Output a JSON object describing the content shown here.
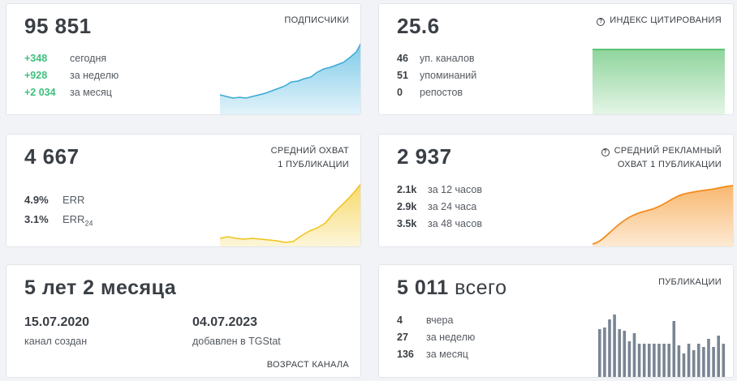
{
  "subscribers": {
    "value": "95 851",
    "label": "ПОДПИСЧИКИ",
    "rows": [
      {
        "value": "+348",
        "text": "сегодня"
      },
      {
        "value": "+928",
        "text": "за неделю"
      },
      {
        "value": "+2 034",
        "text": "за месяц"
      }
    ],
    "color": "#3aa9d6"
  },
  "citation": {
    "value": "25.6",
    "label": "ИНДЕКС ЦИТИРОВАНИЯ",
    "help_icon": "question-circle-icon",
    "rows": [
      {
        "value": "46",
        "text": "уп. каналов"
      },
      {
        "value": "51",
        "text": "упоминаний"
      },
      {
        "value": "0",
        "text": "репостов"
      }
    ],
    "color": "#3cb85c"
  },
  "reach": {
    "value": "4 667",
    "label_line1": "СРЕДНИЙ ОХВАТ",
    "label_line2": "1 ПУБЛИКАЦИИ",
    "err": {
      "value": "4.9%",
      "text": "ERR"
    },
    "err24": {
      "value": "3.1%",
      "text": "ERR",
      "sub": "24"
    },
    "color": "#f0c419"
  },
  "ad_reach": {
    "value": "2 937",
    "label_line1": "СРЕДНИЙ РЕКЛАМНЫЙ",
    "label_line2": "ОХВАТ 1 ПУБЛИКАЦИИ",
    "help_icon": "question-circle-icon",
    "rows": [
      {
        "value": "2.1k",
        "text": "за 12 часов"
      },
      {
        "value": "2.9k",
        "text": "за 24 часа"
      },
      {
        "value": "3.5k",
        "text": "за 48 часов"
      }
    ],
    "color": "#f28c1c"
  },
  "age": {
    "value": "5 лет 2 месяца",
    "created_date": "15.07.2020",
    "created_label": "канал создан",
    "added_date": "04.07.2023",
    "added_label": "добавлен в TGStat",
    "label": "ВОЗРАСТ КАНАЛА"
  },
  "posts": {
    "value": "5 011",
    "value_suffix": "всего",
    "label": "ПУБЛИКАЦИИ",
    "rows": [
      {
        "value": "4",
        "text": "вчера"
      },
      {
        "value": "27",
        "text": "за неделю"
      },
      {
        "value": "136",
        "text": "за месяц"
      }
    ],
    "color": "#7a8594"
  }
}
